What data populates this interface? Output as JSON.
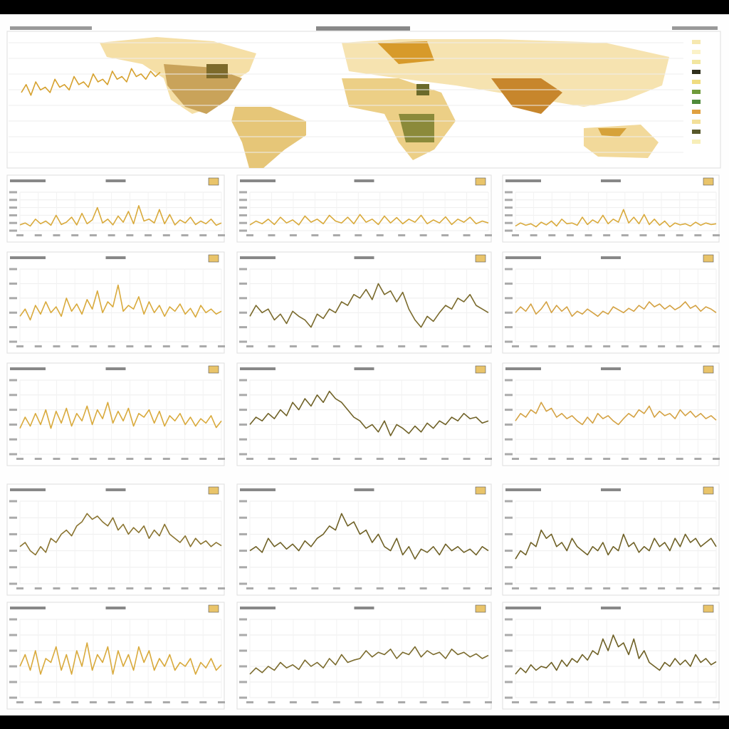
{
  "chart_data": [
    {
      "type": "line",
      "color": "#d6a12e",
      "ylim": [
        0,
        100
      ],
      "values": [
        40,
        55,
        35,
        60,
        45,
        50,
        40,
        65,
        50,
        55,
        45,
        70,
        55,
        60,
        50,
        75,
        60,
        65,
        55,
        80,
        65,
        70,
        60,
        85,
        70,
        75,
        65,
        80,
        70,
        78
      ]
    },
    {
      "type": "line",
      "color": "#d9aa3c",
      "ylim": [
        0,
        100
      ],
      "values": [
        15,
        20,
        12,
        30,
        18,
        25,
        14,
        40,
        16,
        22,
        35,
        15,
        45,
        18,
        28,
        60,
        20,
        30,
        15,
        38,
        22,
        50,
        18,
        65,
        25,
        30,
        20,
        55,
        18,
        42,
        15,
        28,
        20,
        35,
        16,
        25,
        18,
        30,
        14,
        20
      ]
    },
    {
      "type": "line",
      "color": "#d9aa3c",
      "ylim": [
        0,
        100
      ],
      "values": [
        15,
        25,
        18,
        30,
        16,
        35,
        20,
        28,
        15,
        38,
        22,
        30,
        18,
        40,
        25,
        20,
        35,
        18,
        42,
        22,
        30,
        16,
        38,
        20,
        34,
        18,
        30,
        22,
        40,
        18,
        28,
        20,
        36,
        16,
        30,
        22,
        35,
        18,
        25,
        20
      ]
    },
    {
      "type": "line",
      "color": "#d9aa3c",
      "ylim": [
        0,
        100
      ],
      "values": [
        12,
        20,
        14,
        18,
        10,
        22,
        15,
        25,
        12,
        30,
        18,
        20,
        14,
        35,
        16,
        28,
        20,
        40,
        18,
        30,
        22,
        55,
        20,
        35,
        18,
        42,
        16,
        30,
        14,
        25,
        10,
        20,
        15,
        18,
        12,
        22,
        14,
        20,
        16,
        18
      ]
    },
    {
      "type": "line",
      "color": "#d9aa3c",
      "ylim": [
        0,
        100
      ],
      "values": [
        35,
        45,
        30,
        50,
        38,
        55,
        40,
        48,
        35,
        60,
        42,
        52,
        38,
        58,
        45,
        70,
        40,
        55,
        48,
        78,
        42,
        50,
        45,
        62,
        38,
        55,
        40,
        50,
        35,
        48,
        42,
        52,
        38,
        46,
        34,
        50,
        40,
        45,
        38,
        42
      ]
    },
    {
      "type": "line",
      "color": "#7a6a2c",
      "ylim": [
        0,
        100
      ],
      "values": [
        35,
        50,
        40,
        45,
        30,
        38,
        25,
        42,
        35,
        30,
        20,
        38,
        32,
        45,
        40,
        55,
        50,
        65,
        60,
        72,
        58,
        80,
        65,
        70,
        55,
        68,
        45,
        30,
        20,
        35,
        28,
        40,
        50,
        45,
        60,
        55,
        65,
        50,
        45,
        40
      ]
    },
    {
      "type": "line",
      "color": "#d4a243",
      "ylim": [
        0,
        100
      ],
      "values": [
        40,
        48,
        42,
        52,
        38,
        45,
        55,
        40,
        50,
        42,
        48,
        35,
        42,
        38,
        45,
        40,
        35,
        42,
        38,
        48,
        44,
        40,
        46,
        42,
        50,
        45,
        55,
        48,
        52,
        45,
        50,
        44,
        48,
        55,
        46,
        50,
        42,
        48,
        45,
        40
      ]
    },
    {
      "type": "line",
      "color": "#d9aa3c",
      "ylim": [
        0,
        100
      ],
      "values": [
        35,
        50,
        38,
        55,
        40,
        60,
        35,
        58,
        42,
        62,
        38,
        55,
        45,
        65,
        40,
        60,
        48,
        70,
        42,
        58,
        45,
        62,
        38,
        55,
        50,
        60,
        42,
        58,
        38,
        52,
        45,
        55,
        40,
        50,
        38,
        48,
        42,
        52,
        36,
        45
      ]
    },
    {
      "type": "line",
      "color": "#6f6126",
      "ylim": [
        0,
        100
      ],
      "values": [
        40,
        50,
        45,
        55,
        48,
        60,
        52,
        70,
        60,
        75,
        65,
        80,
        70,
        85,
        75,
        70,
        60,
        50,
        45,
        35,
        40,
        30,
        45,
        25,
        40,
        35,
        28,
        38,
        30,
        42,
        35,
        45,
        40,
        50,
        45,
        55,
        48,
        50,
        42,
        45
      ]
    },
    {
      "type": "line",
      "color": "#d4a243",
      "ylim": [
        0,
        100
      ],
      "values": [
        45,
        55,
        50,
        60,
        55,
        70,
        58,
        62,
        50,
        55,
        48,
        52,
        45,
        40,
        50,
        42,
        55,
        48,
        52,
        45,
        40,
        48,
        55,
        50,
        60,
        55,
        65,
        50,
        58,
        52,
        55,
        48,
        60,
        52,
        58,
        50,
        55,
        48,
        52,
        46
      ]
    },
    {
      "type": "line",
      "color": "#8a7430",
      "ylim": [
        0,
        100
      ],
      "values": [
        45,
        50,
        40,
        35,
        45,
        38,
        55,
        50,
        60,
        65,
        58,
        70,
        75,
        85,
        78,
        82,
        75,
        70,
        80,
        65,
        72,
        60,
        68,
        62,
        70,
        55,
        65,
        58,
        72,
        60,
        55,
        50,
        58,
        45,
        55,
        48,
        52,
        45,
        50,
        46
      ]
    },
    {
      "type": "line",
      "color": "#6f6126",
      "ylim": [
        0,
        100
      ],
      "values": [
        40,
        45,
        38,
        55,
        45,
        50,
        42,
        48,
        40,
        52,
        45,
        55,
        60,
        70,
        65,
        85,
        70,
        75,
        60,
        65,
        50,
        60,
        45,
        40,
        55,
        35,
        45,
        30,
        42,
        38,
        45,
        35,
        48,
        40,
        45,
        38,
        42,
        35,
        45,
        40
      ]
    },
    {
      "type": "line",
      "color": "#6f6126",
      "ylim": [
        0,
        100
      ],
      "values": [
        30,
        40,
        35,
        50,
        45,
        65,
        55,
        60,
        45,
        50,
        40,
        55,
        45,
        40,
        35,
        45,
        40,
        50,
        35,
        45,
        40,
        60,
        45,
        50,
        38,
        45,
        40,
        55,
        45,
        50,
        40,
        55,
        45,
        60,
        50,
        55,
        45,
        50,
        55,
        45
      ]
    },
    {
      "type": "line",
      "color": "#d9aa3c",
      "ylim": [
        0,
        100
      ],
      "values": [
        40,
        55,
        35,
        60,
        30,
        50,
        45,
        65,
        35,
        55,
        30,
        60,
        40,
        70,
        35,
        55,
        45,
        65,
        30,
        60,
        40,
        55,
        35,
        65,
        45,
        60,
        35,
        50,
        40,
        55,
        35,
        45,
        40,
        50,
        30,
        45,
        38,
        50,
        35,
        42
      ]
    },
    {
      "type": "line",
      "color": "#7a6a2c",
      "ylim": [
        0,
        100
      ],
      "values": [
        30,
        38,
        32,
        40,
        35,
        45,
        38,
        42,
        36,
        48,
        40,
        45,
        38,
        50,
        42,
        55,
        45,
        48,
        50,
        60,
        52,
        58,
        55,
        62,
        50,
        58,
        55,
        65,
        52,
        60,
        55,
        58,
        50,
        62,
        55,
        58,
        52,
        56,
        50,
        54
      ]
    },
    {
      "type": "line",
      "color": "#6f6126",
      "ylim": [
        0,
        100
      ],
      "values": [
        30,
        38,
        32,
        42,
        35,
        40,
        38,
        45,
        35,
        48,
        40,
        50,
        45,
        55,
        48,
        60,
        55,
        75,
        60,
        80,
        65,
        70,
        55,
        75,
        50,
        60,
        45,
        40,
        35,
        45,
        40,
        50,
        42,
        48,
        40,
        55,
        45,
        50,
        42,
        46
      ]
    }
  ]
}
